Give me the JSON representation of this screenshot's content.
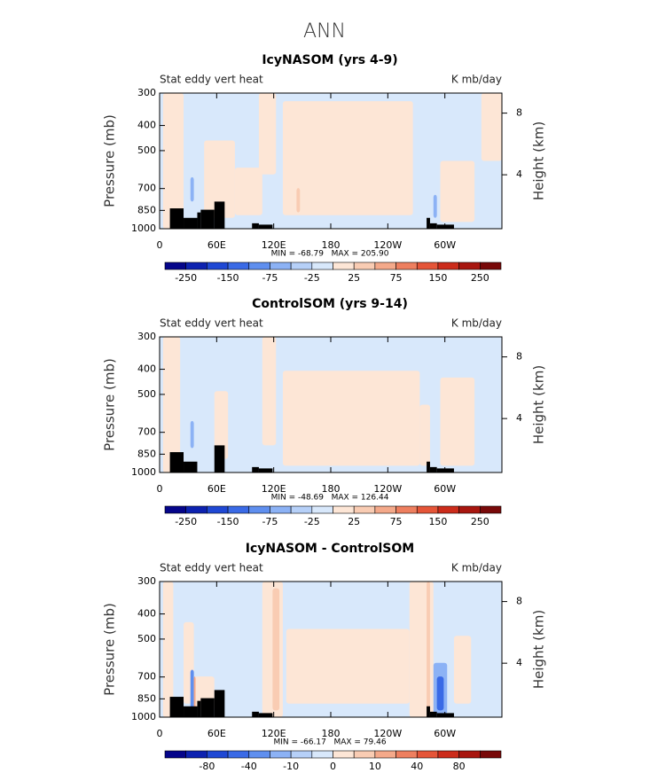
{
  "figure_title": "ANN",
  "chart_data": [
    {
      "type": "contour",
      "title": "IcyNASOM (yrs 4-9)",
      "left_label": "Stat eddy vert heat",
      "right_label": "K mb/day",
      "ylabel": "Pressure (mb)",
      "y2label": "Height (km)",
      "yscale": "log",
      "ylim": [
        1000,
        300
      ],
      "yticks": [
        300,
        400,
        500,
        700,
        850,
        1000
      ],
      "y2lim": [
        0.5,
        9.3
      ],
      "y2ticks": [
        4,
        8
      ],
      "xlim": [
        0,
        360
      ],
      "xticks": [
        0,
        {
          "value": 60,
          "label": "60E"
        },
        {
          "value": 120,
          "label": "120E"
        },
        180,
        {
          "value": 240,
          "label": "120W"
        },
        {
          "value": 300,
          "label": "60W"
        }
      ],
      "annotation": "MIN = -68.79   MAX = 205.90",
      "colorbar": {
        "colors": [
          "#05058a",
          "#0d22b0",
          "#1f48d4",
          "#3a6ae6",
          "#5f8fef",
          "#8cb2f5",
          "#b6d0f8",
          "#d8e8fb",
          "#fde6d6",
          "#f9ccb3",
          "#f4a98a",
          "#ee7f5f",
          "#e55538",
          "#cc2c1b",
          "#a8160f",
          "#780909"
        ],
        "labels": [
          -250,
          -150,
          -75,
          -25,
          25,
          75,
          150,
          250
        ]
      }
    },
    {
      "type": "contour",
      "title": "ControlSOM (yrs 9-14)",
      "left_label": "Stat eddy vert heat",
      "right_label": "K mb/day",
      "ylabel": "Pressure (mb)",
      "y2label": "Height (km)",
      "yscale": "log",
      "ylim": [
        1000,
        300
      ],
      "yticks": [
        300,
        400,
        500,
        700,
        850,
        1000
      ],
      "y2lim": [
        0.5,
        9.3
      ],
      "y2ticks": [
        4,
        8
      ],
      "xlim": [
        0,
        360
      ],
      "xticks": [
        0,
        {
          "value": 60,
          "label": "60E"
        },
        {
          "value": 120,
          "label": "120E"
        },
        180,
        {
          "value": 240,
          "label": "120W"
        },
        {
          "value": 300,
          "label": "60W"
        }
      ],
      "annotation": "MIN = -48.69   MAX = 126.44",
      "colorbar": {
        "colors": [
          "#05058a",
          "#0d22b0",
          "#1f48d4",
          "#3a6ae6",
          "#5f8fef",
          "#8cb2f5",
          "#b6d0f8",
          "#d8e8fb",
          "#fde6d6",
          "#f9ccb3",
          "#f4a98a",
          "#ee7f5f",
          "#e55538",
          "#cc2c1b",
          "#a8160f",
          "#780909"
        ],
        "labels": [
          -250,
          -150,
          -75,
          -25,
          25,
          75,
          150,
          250
        ]
      }
    },
    {
      "type": "contour",
      "title": "IcyNASOM - ControlSOM",
      "left_label": "Stat eddy vert heat",
      "right_label": "K mb/day",
      "ylabel": "Pressure (mb)",
      "y2label": "Height (km)",
      "yscale": "log",
      "ylim": [
        1000,
        300
      ],
      "yticks": [
        300,
        400,
        500,
        700,
        850,
        1000
      ],
      "y2lim": [
        0.5,
        9.3
      ],
      "y2ticks": [
        4,
        8
      ],
      "xlim": [
        0,
        360
      ],
      "xticks": [
        0,
        {
          "value": 60,
          "label": "60E"
        },
        {
          "value": 120,
          "label": "120E"
        },
        180,
        {
          "value": 240,
          "label": "120W"
        },
        {
          "value": 300,
          "label": "60W"
        }
      ],
      "annotation": "MIN = -66.17   MAX = 79.46",
      "colorbar": {
        "colors": [
          "#05058a",
          "#0d22b0",
          "#1f48d4",
          "#3a6ae6",
          "#5f8fef",
          "#8cb2f5",
          "#b6d0f8",
          "#d8e8fb",
          "#fde6d6",
          "#f9ccb3",
          "#f4a98a",
          "#ee7f5f",
          "#e55538",
          "#cc2c1b",
          "#a8160f",
          "#780909"
        ],
        "labels": [
          -80,
          -40,
          -10,
          0,
          10,
          40,
          80
        ]
      }
    }
  ]
}
